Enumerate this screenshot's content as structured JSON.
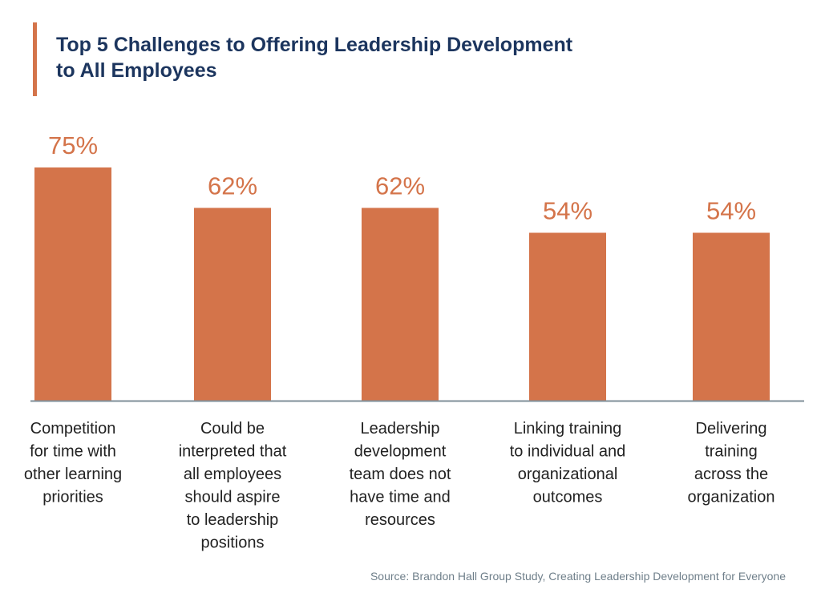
{
  "title_line1": "Top 5 Challenges to Offering Leadership Development",
  "title_line2": "to All Employees",
  "source": "Source: Brandon Hall Group Study, Creating Leadership Development for Everyone",
  "colors": {
    "bar": "#d4744a",
    "title": "#1c355e",
    "axis": "#7f8f99",
    "label": "#222222"
  },
  "chart_data": {
    "type": "bar",
    "categories": [
      [
        "Competition",
        "for time with",
        "other learning",
        "priorities"
      ],
      [
        "Could be",
        "interpreted that",
        "all employees",
        "should aspire",
        "to leadership",
        "positions"
      ],
      [
        "Leadership",
        "development",
        "team does not",
        "have time and",
        "resources"
      ],
      [
        "Linking training",
        "to individual and",
        "organizational",
        "outcomes"
      ],
      [
        "Delivering",
        "training",
        "across the",
        "organization"
      ]
    ],
    "values": [
      75,
      62,
      62,
      54,
      54
    ],
    "data_labels": [
      "75%",
      "62%",
      "62%",
      "54%",
      "54%"
    ],
    "ylim": [
      0,
      100
    ],
    "grid": false,
    "legend": "none"
  }
}
